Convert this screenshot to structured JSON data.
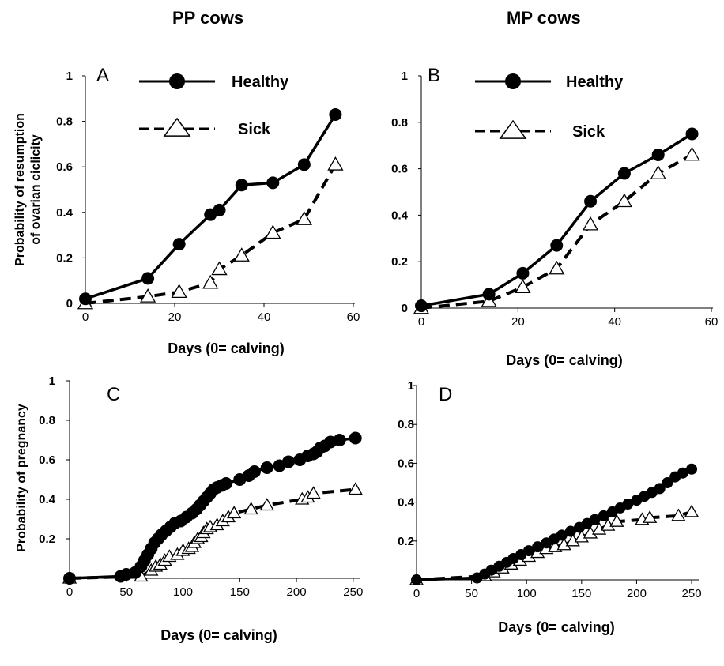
{
  "column_titles": {
    "left": "PP cows",
    "right": "MP cows"
  },
  "legend": {
    "healthy": "Healthy",
    "sick": "Sick"
  },
  "colors": {
    "line": "#000000",
    "marker_fill_sick": "#ffffff"
  },
  "chart_data": [
    {
      "panel": "A",
      "type": "line",
      "xlabel": "Days (0= calving)",
      "ylabel_lines": [
        "Probability of resumption",
        "of ovarian ciclicity"
      ],
      "xlim": [
        0,
        60
      ],
      "ylim": [
        0,
        1
      ],
      "xticks": [
        0,
        20,
        40,
        60
      ],
      "yticks": [
        0,
        0.2,
        0.4,
        0.6,
        0.8,
        1
      ],
      "ytick_labels": [
        "0",
        "0.2",
        "0.4",
        "0.6",
        "0.8",
        "1"
      ],
      "legend_position": "top",
      "series": [
        {
          "name": "Healthy",
          "marker": "circle",
          "dash": false,
          "x": [
            0,
            14,
            21,
            28,
            30,
            35,
            42,
            49,
            56
          ],
          "y": [
            0.02,
            0.11,
            0.26,
            0.39,
            0.41,
            0.52,
            0.53,
            0.61,
            0.83
          ]
        },
        {
          "name": "Sick",
          "marker": "triangle",
          "dash": true,
          "x": [
            0,
            14,
            21,
            28,
            30,
            35,
            42,
            49,
            56
          ],
          "y": [
            0.0,
            0.03,
            0.05,
            0.09,
            0.15,
            0.21,
            0.31,
            0.37,
            0.61
          ]
        }
      ]
    },
    {
      "panel": "B",
      "type": "line",
      "xlabel": "Days (0= calving)",
      "xlim": [
        0,
        60
      ],
      "ylim": [
        0,
        1
      ],
      "xticks": [
        0,
        20,
        40,
        60
      ],
      "yticks": [
        0,
        0.2,
        0.4,
        0.6,
        0.8,
        1
      ],
      "ytick_labels": [
        "0",
        "0.2",
        "0.4",
        "0.6",
        "0.8",
        "1"
      ],
      "legend_position": "top",
      "series": [
        {
          "name": "Healthy",
          "marker": "circle",
          "dash": false,
          "x": [
            0,
            14,
            21,
            28,
            35,
            42,
            49,
            56
          ],
          "y": [
            0.01,
            0.06,
            0.15,
            0.27,
            0.46,
            0.58,
            0.66,
            0.75
          ]
        },
        {
          "name": "Sick",
          "marker": "triangle",
          "dash": true,
          "x": [
            0,
            14,
            21,
            28,
            35,
            42,
            49,
            56
          ],
          "y": [
            0.0,
            0.03,
            0.09,
            0.17,
            0.36,
            0.46,
            0.58,
            0.66
          ]
        }
      ]
    },
    {
      "panel": "C",
      "type": "line",
      "xlabel": "Days (0= calving)",
      "ylabel": "Probability of pregnancy",
      "xlim": [
        0,
        255
      ],
      "ylim": [
        0,
        1
      ],
      "xticks": [
        0,
        50,
        100,
        150,
        200,
        250
      ],
      "yticks": [
        0.2,
        0.4,
        0.6,
        0.8,
        1
      ],
      "ytick_labels": [
        "0.2",
        "0.4",
        "0.6",
        "0.8",
        "1"
      ],
      "series": [
        {
          "name": "Healthy",
          "marker": "circle",
          "dash": false,
          "x": [
            0,
            45,
            50,
            58,
            63,
            66,
            69,
            72,
            75,
            78,
            81,
            85,
            89,
            93,
            98,
            103,
            108,
            112,
            115,
            118,
            121,
            124,
            127,
            130,
            134,
            138,
            150,
            158,
            163,
            174,
            185,
            193,
            203,
            210,
            215,
            218,
            221,
            225,
            230,
            238,
            252
          ],
          "y": [
            0.0,
            0.01,
            0.02,
            0.03,
            0.06,
            0.09,
            0.12,
            0.15,
            0.18,
            0.2,
            0.22,
            0.24,
            0.26,
            0.28,
            0.29,
            0.31,
            0.33,
            0.35,
            0.37,
            0.39,
            0.41,
            0.43,
            0.45,
            0.46,
            0.47,
            0.48,
            0.5,
            0.52,
            0.54,
            0.56,
            0.57,
            0.59,
            0.6,
            0.62,
            0.63,
            0.64,
            0.66,
            0.67,
            0.69,
            0.7,
            0.71
          ]
        },
        {
          "name": "Sick",
          "marker": "triangle",
          "dash": true,
          "x": [
            0,
            63,
            72,
            76,
            80,
            84,
            88,
            95,
            100,
            105,
            108,
            110,
            113,
            116,
            118,
            121,
            124,
            130,
            135,
            140,
            145,
            160,
            174,
            205,
            210,
            215,
            252
          ],
          "y": [
            0.0,
            0.01,
            0.04,
            0.06,
            0.07,
            0.09,
            0.11,
            0.12,
            0.14,
            0.15,
            0.16,
            0.18,
            0.2,
            0.21,
            0.23,
            0.25,
            0.26,
            0.27,
            0.29,
            0.31,
            0.33,
            0.35,
            0.37,
            0.4,
            0.41,
            0.43,
            0.45
          ]
        }
      ]
    },
    {
      "panel": "D",
      "type": "line",
      "xlabel": "Days (0= calving)",
      "xlim": [
        0,
        255
      ],
      "ylim": [
        0,
        1
      ],
      "xticks": [
        0,
        50,
        100,
        150,
        200,
        250
      ],
      "yticks": [
        0.2,
        0.4,
        0.6,
        0.8,
        1
      ],
      "ytick_labels": [
        "0.2",
        "0.4",
        "0.6",
        "0.8",
        "1"
      ],
      "series": [
        {
          "name": "Healthy",
          "marker": "circle",
          "dash": false,
          "x": [
            0,
            55,
            62,
            68,
            75,
            82,
            88,
            95,
            102,
            110,
            118,
            125,
            132,
            140,
            148,
            155,
            162,
            170,
            178,
            185,
            192,
            200,
            207,
            214,
            221,
            228,
            235,
            242,
            250
          ],
          "y": [
            0.0,
            0.01,
            0.03,
            0.05,
            0.07,
            0.09,
            0.11,
            0.13,
            0.15,
            0.17,
            0.19,
            0.21,
            0.23,
            0.25,
            0.27,
            0.29,
            0.31,
            0.33,
            0.35,
            0.37,
            0.39,
            0.41,
            0.43,
            0.45,
            0.47,
            0.5,
            0.53,
            0.55,
            0.57
          ]
        },
        {
          "name": "Sick",
          "marker": "triangle",
          "dash": true,
          "x": [
            0,
            62,
            70,
            78,
            86,
            94,
            102,
            110,
            118,
            126,
            134,
            142,
            150,
            158,
            166,
            174,
            182,
            205,
            212,
            238,
            250
          ],
          "y": [
            0.0,
            0.02,
            0.04,
            0.06,
            0.08,
            0.1,
            0.12,
            0.14,
            0.16,
            0.17,
            0.18,
            0.2,
            0.22,
            0.24,
            0.26,
            0.28,
            0.3,
            0.31,
            0.32,
            0.33,
            0.35
          ]
        }
      ]
    }
  ]
}
